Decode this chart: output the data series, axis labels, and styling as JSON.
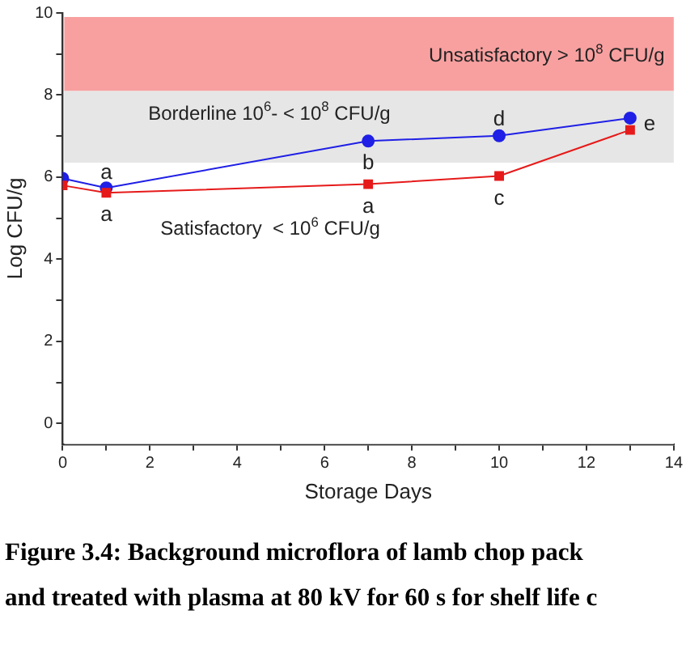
{
  "chart_data": {
    "type": "line",
    "xlabel": "Storage Days",
    "ylabel": "Log CFU/g",
    "xlim": [
      0,
      14
    ],
    "xticks": [
      0,
      {
        "value": 1,
        "label": null
      },
      2,
      {
        "value": 3,
        "label": null
      },
      4,
      {
        "value": 5,
        "label": null
      },
      6,
      {
        "value": 7,
        "label": null
      },
      8,
      {
        "value": 9,
        "label": null
      },
      10,
      {
        "value": 11,
        "label": null
      },
      12,
      {
        "value": 13,
        "label": null
      },
      14
    ],
    "ylim": [
      -0.5,
      10
    ],
    "yticks": [
      0,
      {
        "value": 1,
        "label": null
      },
      2,
      {
        "value": 3,
        "label": null
      },
      4,
      {
        "value": 5,
        "label": null
      },
      6,
      {
        "value": 7,
        "label": null
      },
      8,
      {
        "value": 9,
        "label": null
      },
      10
    ],
    "x": [
      0,
      1,
      7,
      10,
      13
    ],
    "series": [
      {
        "color": "#1f1fe6",
        "marker": "circle",
        "values": [
          5.97,
          5.74,
          6.88,
          7.01,
          7.44
        ]
      },
      {
        "color": "#e61a1a",
        "marker": "square",
        "values": [
          5.8,
          5.62,
          5.83,
          6.03,
          7.15
        ]
      }
    ],
    "bands": [
      {
        "axis": "y",
        "from": 8.1,
        "to": 9.9,
        "color": "#f8a0a0",
        "label": "Unsatisfactory > 10$^{8}$ CFU/g"
      },
      {
        "axis": "y",
        "from": 6.35,
        "to": 8.1,
        "color": "#e6e6e6",
        "label": "Borderline 10$^{6}$- < 10$^{8}$ CFU/g"
      },
      {
        "axis": "y",
        "from": -0.5,
        "to": 6.35,
        "color": "#ffffff",
        "label": "Satisfactory  < 10$^{6}$ CFU/g"
      }
    ],
    "grid": false,
    "legend": false,
    "annotations": [
      {
        "text": "a",
        "x": 1,
        "y": 5.74
      },
      {
        "text": "a",
        "x": 1,
        "y": 5.62
      },
      {
        "text": "b",
        "x": 7,
        "y": 6.88
      },
      {
        "text": "a",
        "x": 7,
        "y": 5.83
      },
      {
        "text": "d",
        "x": 10,
        "y": 7.01
      },
      {
        "text": "c",
        "x": 10,
        "y": 6.03
      },
      {
        "text": "e",
        "x": 13,
        "y": 7.44
      },
      "Figure 3.4: Background microflora of lamb chop pack",
      "and treated with plasma at 80 kV for 60 s for shelf life c"
    ]
  }
}
